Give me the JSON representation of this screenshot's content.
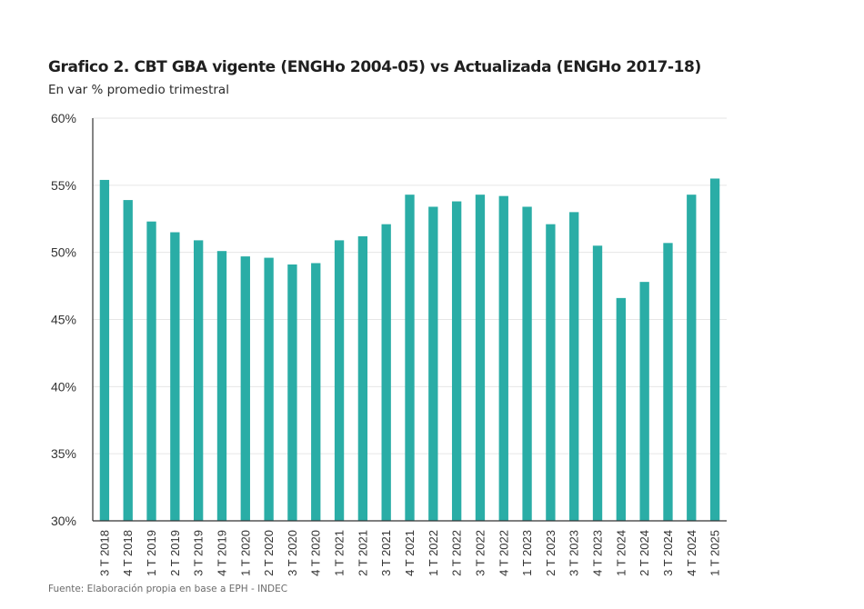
{
  "header": {
    "title": "Grafico 2. CBT GBA vigente (ENGHo 2004-05) vs Actualizada (ENGHo 2017-18)",
    "subtitle": "En var % promedio trimestral"
  },
  "footer": {
    "source": "Fuente: Elaboración propia en base a EPH - INDEC"
  },
  "colors": {
    "bar": "#2aada6",
    "grid": "#e6e6e6",
    "axis": "#333333"
  },
  "chart_data": {
    "type": "bar",
    "title": "Grafico 2. CBT GBA vigente (ENGHo 2004-05) vs Actualizada (ENGHo 2017-18)",
    "subtitle": "En var % promedio trimestral",
    "xlabel": "",
    "ylabel": "",
    "ylim": [
      30,
      60
    ],
    "yticks": [
      30,
      35,
      40,
      45,
      50,
      55,
      60
    ],
    "ytick_labels": [
      "30%",
      "35%",
      "40%",
      "45%",
      "50%",
      "55%",
      "60%"
    ],
    "grid": "horizontal",
    "legend": "none",
    "categories": [
      "3 T 2018",
      "4 T 2018",
      "1 T 2019",
      "2 T 2019",
      "3 T 2019",
      "4 T 2019",
      "1 T 2020",
      "2 T 2020",
      "3 T 2020",
      "4 T 2020",
      "1 T 2021",
      "2 T 2021",
      "3 T 2021",
      "4 T 2021",
      "1 T 2022",
      "2 T 2022",
      "3 T 2022",
      "4 T 2022",
      "1 T 2023",
      "2 T 2023",
      "3 T 2023",
      "4 T 2023",
      "1 T 2024",
      "2 T 2024",
      "3 T 2024",
      "4 T 2024",
      "1 T 2025"
    ],
    "values": [
      55.4,
      53.9,
      52.3,
      51.5,
      50.9,
      50.1,
      49.7,
      49.6,
      49.1,
      49.2,
      50.9,
      51.2,
      52.1,
      54.3,
      53.4,
      53.8,
      54.3,
      54.2,
      53.4,
      52.1,
      53.0,
      50.5,
      46.6,
      47.8,
      50.7,
      54.3,
      55.5
    ],
    "source": "Fuente: Elaboración propia en base a EPH - INDEC"
  }
}
